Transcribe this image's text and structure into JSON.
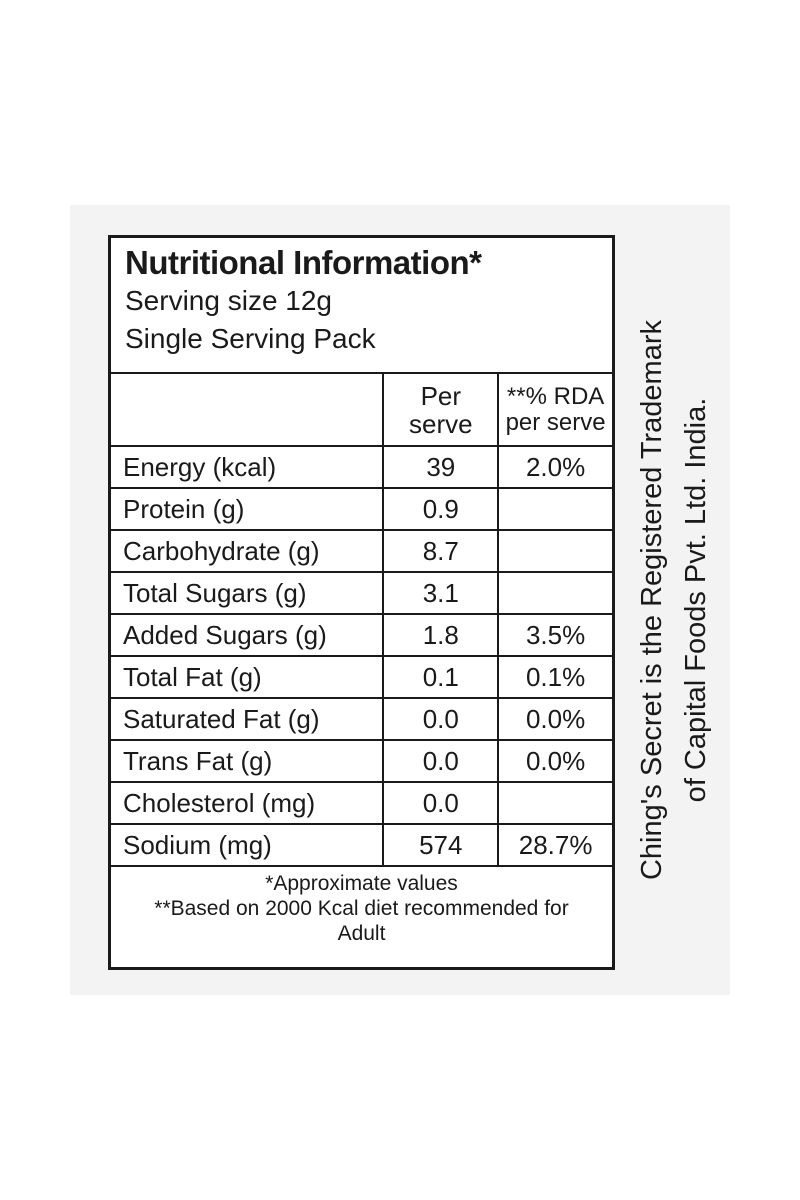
{
  "header": {
    "title": "Nutritional Information*",
    "lines": [
      "Serving size 12g",
      "Single Serving Pack"
    ]
  },
  "table": {
    "columns": [
      [
        "Per",
        "serve"
      ],
      [
        "**% RDA",
        "per serve"
      ]
    ],
    "rows": [
      [
        "Energy (kcal)",
        "39",
        "2.0%"
      ],
      [
        "Protein (g)",
        "0.9",
        null
      ],
      [
        "Carbohydrate (g)",
        "8.7",
        null
      ],
      [
        "Total Sugars (g)",
        "3.1",
        null
      ],
      [
        "Added Sugars (g)",
        "1.8",
        "3.5%"
      ],
      [
        "Total Fat (g)",
        "0.1",
        "0.1%"
      ],
      [
        "Saturated Fat (g)",
        "0.0",
        "0.0%"
      ],
      [
        "Trans Fat (g)",
        "0.0",
        "0.0%"
      ],
      [
        "Cholesterol (mg)",
        "0.0",
        null
      ],
      [
        "Sodium (mg)",
        "574",
        "28.7%"
      ]
    ]
  },
  "footnotes": [
    "*Approximate values",
    "**Based on 2000 Kcal diet recommended for Adult"
  ],
  "side_text": [
    "Ching's Secret is the Registered Trademark",
    "of Capital Foods Pvt. Ltd. India."
  ]
}
